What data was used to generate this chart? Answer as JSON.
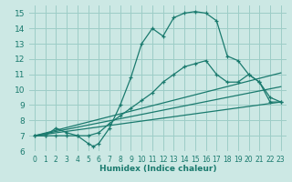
{
  "xlabel": "Humidex (Indice chaleur)",
  "xlim": [
    -0.5,
    23.5
  ],
  "ylim": [
    6,
    15.5
  ],
  "yticks": [
    6,
    7,
    8,
    9,
    10,
    11,
    12,
    13,
    14,
    15
  ],
  "xticks": [
    0,
    1,
    2,
    3,
    4,
    5,
    6,
    7,
    8,
    9,
    10,
    11,
    12,
    13,
    14,
    15,
    16,
    17,
    18,
    19,
    20,
    21,
    22,
    23
  ],
  "bg_color": "#cce8e4",
  "line_color": "#1a7a6e",
  "grid_color": "#9dcdc7",
  "line1_x": [
    0,
    1,
    2,
    3,
    4,
    5,
    5.5,
    6,
    7,
    8,
    9,
    10,
    11,
    12,
    13,
    14,
    15,
    16,
    17,
    18,
    19,
    20,
    21,
    22,
    23
  ],
  "line1_y": [
    7,
    7,
    7.5,
    7.2,
    7,
    6.5,
    6.3,
    6.5,
    7.5,
    9,
    10.8,
    13,
    14,
    13.5,
    14.7,
    15,
    15.1,
    15,
    14.5,
    12.2,
    11.9,
    11,
    10.5,
    9.5,
    9.2
  ],
  "line2_x": [
    0,
    1,
    2,
    3,
    4,
    5,
    6,
    7,
    8,
    9,
    10,
    11,
    12,
    13,
    14,
    15,
    16,
    17,
    18,
    19,
    20,
    21,
    22,
    23
  ],
  "line2_y": [
    7,
    7,
    7,
    7,
    7,
    7,
    7.2,
    7.8,
    8.3,
    8.8,
    9.3,
    9.8,
    10.5,
    11,
    11.5,
    11.7,
    11.9,
    11,
    10.5,
    10.5,
    11,
    10.5,
    9.2,
    9.2
  ],
  "line3_x": [
    0,
    23
  ],
  "line3_y": [
    7,
    9.2
  ],
  "line4_x": [
    0,
    23
  ],
  "line4_y": [
    7,
    10.2
  ],
  "line5_x": [
    0,
    23
  ],
  "line5_y": [
    7,
    11.1
  ]
}
